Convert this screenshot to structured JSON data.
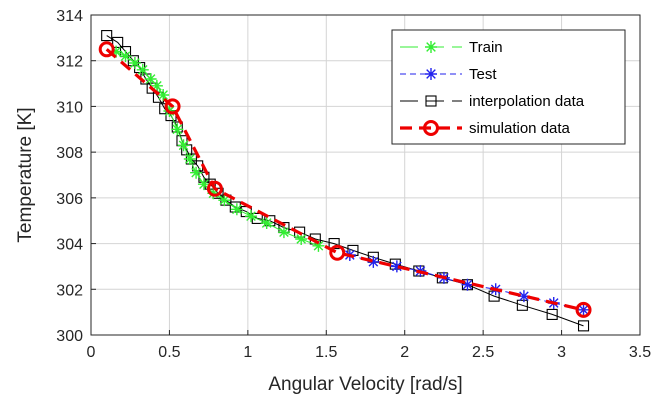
{
  "chart_data": {
    "type": "line",
    "xlabel": "Angular Velocity [rad/s]",
    "ylabel": "Temperature [K]",
    "xlim": [
      0,
      3.5
    ],
    "ylim": [
      300,
      314
    ],
    "xticks": [
      "0",
      "0.5",
      "1",
      "1.5",
      "2",
      "2.5",
      "3",
      "3.5"
    ],
    "yticks": [
      "300",
      "302",
      "304",
      "306",
      "308",
      "310",
      "312",
      "314"
    ],
    "grid": true,
    "legend_position": "top-right",
    "series": [
      {
        "name": "Train",
        "color": "#33ee33",
        "marker": "asterisk",
        "line": "solid",
        "x": [
          0.16,
          0.22,
          0.28,
          0.33,
          0.38,
          0.42,
          0.46,
          0.5,
          0.55,
          0.59,
          0.63,
          0.67,
          0.72,
          0.78,
          0.85,
          0.93,
          1.02,
          1.12,
          1.23,
          1.34,
          1.45
        ],
        "y": [
          312.4,
          312.2,
          311.9,
          311.6,
          311.2,
          310.9,
          310.5,
          309.8,
          309.0,
          308.3,
          307.7,
          307.1,
          306.6,
          306.2,
          305.9,
          305.5,
          305.2,
          304.9,
          304.5,
          304.2,
          303.9
        ]
      },
      {
        "name": "Test",
        "color": "#2222ee",
        "marker": "asterisk",
        "line": "dashed",
        "x": [
          1.65,
          1.8,
          1.95,
          2.1,
          2.25,
          2.4,
          2.58,
          2.76,
          2.95,
          3.14
        ],
        "y": [
          303.5,
          303.2,
          303.0,
          302.8,
          302.5,
          302.2,
          302.0,
          301.7,
          301.4,
          301.1
        ]
      },
      {
        "name": "interpolation data",
        "color": "#000000",
        "marker": "square",
        "line": "solid",
        "x": [
          0.1,
          0.17,
          0.22,
          0.27,
          0.31,
          0.35,
          0.39,
          0.43,
          0.47,
          0.51,
          0.55,
          0.58,
          0.61,
          0.64,
          0.68,
          0.72,
          0.76,
          0.81,
          0.86,
          0.92,
          0.99,
          1.06,
          1.14,
          1.23,
          1.33,
          1.43,
          1.55,
          1.67,
          1.8,
          1.94,
          2.09,
          2.24,
          2.4,
          2.57,
          2.75,
          2.94,
          3.14
        ],
        "y": [
          313.1,
          312.8,
          312.4,
          312.0,
          311.7,
          311.2,
          310.8,
          310.4,
          309.9,
          309.6,
          309.1,
          308.5,
          308.1,
          307.7,
          307.4,
          306.9,
          306.6,
          306.2,
          305.9,
          305.6,
          305.4,
          305.1,
          305.0,
          304.7,
          304.5,
          304.2,
          304.0,
          303.7,
          303.4,
          303.1,
          302.8,
          302.5,
          302.2,
          301.7,
          301.3,
          300.9,
          300.4
        ]
      },
      {
        "name": "simulation data",
        "color": "#ee0000",
        "marker": "circle",
        "line": "dashed",
        "x": [
          0.1,
          0.52,
          0.79,
          1.57,
          3.14
        ],
        "y": [
          312.5,
          310.0,
          306.4,
          303.6,
          301.1
        ]
      }
    ]
  }
}
